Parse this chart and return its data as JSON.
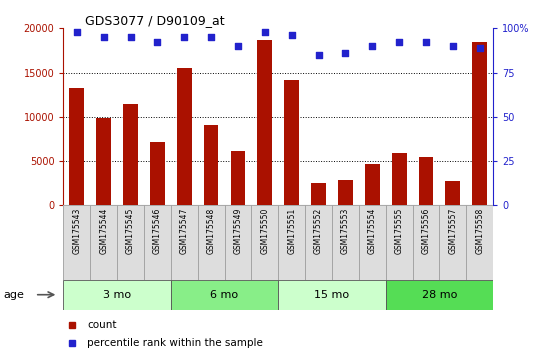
{
  "title": "GDS3077 / D90109_at",
  "samples": [
    "GSM175543",
    "GSM175544",
    "GSM175545",
    "GSM175546",
    "GSM175547",
    "GSM175548",
    "GSM175549",
    "GSM175550",
    "GSM175551",
    "GSM175552",
    "GSM175553",
    "GSM175554",
    "GSM175555",
    "GSM175556",
    "GSM175557",
    "GSM175558"
  ],
  "counts": [
    13300,
    9900,
    11400,
    7100,
    15500,
    9100,
    6100,
    18700,
    14200,
    2500,
    2900,
    4700,
    5900,
    5500,
    2700,
    18500
  ],
  "percentile_ranks": [
    98,
    95,
    95,
    92,
    95,
    95,
    90,
    98,
    96,
    85,
    86,
    90,
    92,
    92,
    90,
    89
  ],
  "bar_color": "#AA1100",
  "dot_color": "#2222CC",
  "ylim_left": [
    0,
    20000
  ],
  "yticks_left": [
    0,
    5000,
    10000,
    15000,
    20000
  ],
  "yticks_right": [
    0,
    25,
    50,
    75,
    100
  ],
  "groups": [
    {
      "label": "3 mo",
      "start": 0,
      "end": 4,
      "color": "#CCFFCC"
    },
    {
      "label": "6 mo",
      "start": 4,
      "end": 8,
      "color": "#88EE88"
    },
    {
      "label": "15 mo",
      "start": 8,
      "end": 12,
      "color": "#CCFFCC"
    },
    {
      "label": "28 mo",
      "start": 12,
      "end": 16,
      "color": "#55DD55"
    }
  ],
  "age_label": "age",
  "legend_count": "count",
  "legend_percentile": "percentile rank within the sample",
  "grid_color": "#888888",
  "sample_area_bg": "#CCCCCC",
  "cell_bg": "#DDDDDD"
}
